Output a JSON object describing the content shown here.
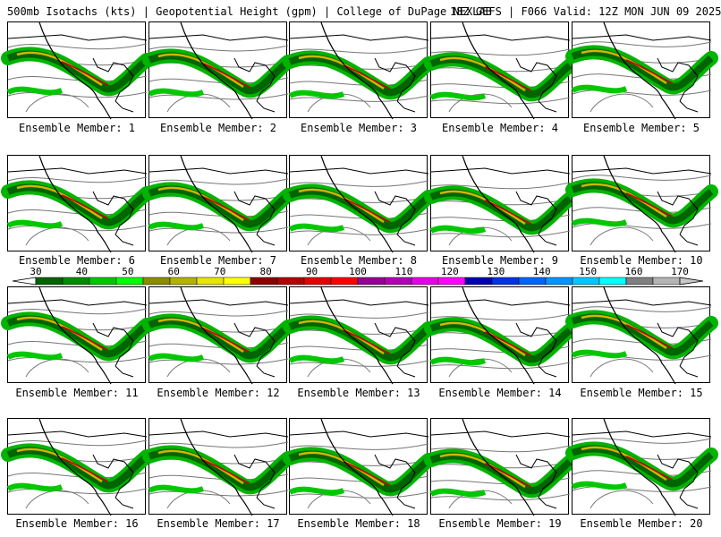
{
  "header": {
    "left": "500mb Isotachs (kts) | Geopotential Height (gpm) | College of DuPage NEXLAB",
    "right": "18Z GEFS | F066 Valid: 12Z MON JUN 09 2025"
  },
  "members": [
    {
      "label": "Ensemble Member: 1"
    },
    {
      "label": "Ensemble Member: 2"
    },
    {
      "label": "Ensemble Member: 3"
    },
    {
      "label": "Ensemble Member: 4"
    },
    {
      "label": "Ensemble Member: 5"
    },
    {
      "label": "Ensemble Member: 6"
    },
    {
      "label": "Ensemble Member: 7"
    },
    {
      "label": "Ensemble Member: 8"
    },
    {
      "label": "Ensemble Member: 9"
    },
    {
      "label": "Ensemble Member: 10"
    },
    {
      "label": "Ensemble Member: 11"
    },
    {
      "label": "Ensemble Member: 12"
    },
    {
      "label": "Ensemble Member: 13"
    },
    {
      "label": "Ensemble Member: 14"
    },
    {
      "label": "Ensemble Member: 15"
    },
    {
      "label": "Ensemble Member: 16"
    },
    {
      "label": "Ensemble Member: 17"
    },
    {
      "label": "Ensemble Member: 18"
    },
    {
      "label": "Ensemble Member: 19"
    },
    {
      "label": "Ensemble Member: 20"
    }
  ],
  "colorbar": {
    "ticks": [
      "30",
      "40",
      "50",
      "60",
      "70",
      "80",
      "90",
      "100",
      "110",
      "120",
      "130",
      "140",
      "150",
      "160",
      "170"
    ],
    "colors": [
      "#006400",
      "#008c00",
      "#00c800",
      "#00ff00",
      "#8c8c00",
      "#b4b400",
      "#e6e600",
      "#ffff00",
      "#8c0000",
      "#b40000",
      "#e60000",
      "#ff0000",
      "#960096",
      "#b400b4",
      "#e600e6",
      "#ff00ff",
      "#0000b4",
      "#0032e6",
      "#0064ff",
      "#0096ff",
      "#00c8ff",
      "#00ffff",
      "#808080",
      "#b4b4b4"
    ],
    "ends": {
      "low": "#ffffff",
      "high": "#c8c8c8"
    }
  },
  "map_colors": {
    "coast": "#000000",
    "height_contour": "#777777",
    "jet_core": "#c80000",
    "jet_mid": "#d2b400"
  }
}
